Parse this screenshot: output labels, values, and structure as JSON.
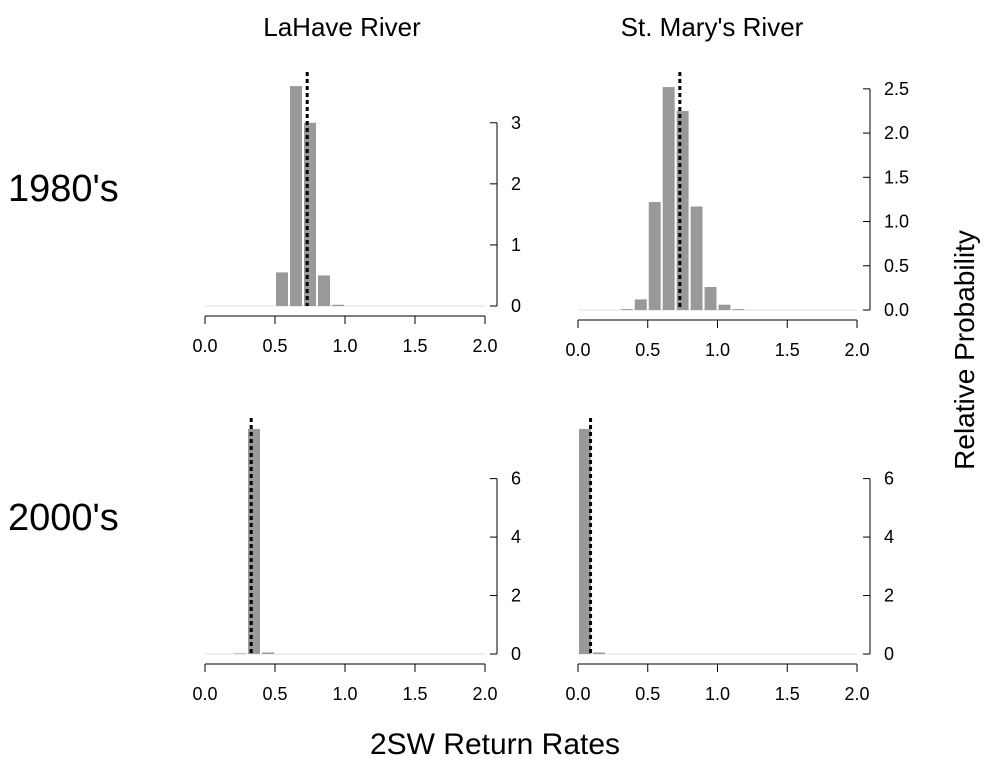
{
  "column_titles": [
    "LaHave River",
    "St. Mary's River"
  ],
  "row_titles": [
    "1980's",
    "2000's"
  ],
  "xlabel": "2SW Return Rates",
  "ylabel": "Relative Probability",
  "chart_data": [
    {
      "type": "bar",
      "title": "LaHave River",
      "row": "1980's",
      "xlim": [
        0,
        2
      ],
      "x_ticks": [
        0.0,
        0.5,
        1.0,
        1.5,
        2.0
      ],
      "x_tick_labels": [
        "0.0",
        "0.5",
        "1.0",
        "1.5",
        "2.0"
      ],
      "bin_width": 0.1,
      "bins_start": [
        0.5,
        0.6,
        0.7,
        0.8,
        0.9,
        1.0
      ],
      "values": [
        0.55,
        3.6,
        3.0,
        0.5,
        0.02,
        0.0
      ],
      "ylim": [
        0,
        3.7
      ],
      "y_ticks": [
        0,
        1,
        2,
        3
      ],
      "y_tick_labels": [
        "0",
        "1",
        "2",
        "3"
      ],
      "dotted_line_x": 0.73
    },
    {
      "type": "bar",
      "title": "St. Mary's River",
      "row": "1980's",
      "xlim": [
        0,
        2
      ],
      "x_ticks": [
        0.0,
        0.5,
        1.0,
        1.5,
        2.0
      ],
      "x_tick_labels": [
        "0.0",
        "0.5",
        "1.0",
        "1.5",
        "2.0"
      ],
      "bin_width": 0.1,
      "bins_start": [
        0.3,
        0.4,
        0.5,
        0.6,
        0.7,
        0.8,
        0.9,
        1.0,
        1.1,
        1.2
      ],
      "values": [
        0.01,
        0.12,
        1.22,
        2.52,
        2.25,
        1.17,
        0.26,
        0.06,
        0.01,
        0.0
      ],
      "ylim": [
        0,
        2.6
      ],
      "y_ticks": [
        0.0,
        0.5,
        1.0,
        1.5,
        2.0,
        2.5
      ],
      "y_tick_labels": [
        "0.0",
        "0.5",
        "1.0",
        "1.5",
        "2.0",
        "2.5"
      ],
      "dotted_line_x": 0.73
    },
    {
      "type": "bar",
      "title": "LaHave River",
      "row": "2000's",
      "xlim": [
        0,
        2
      ],
      "x_ticks": [
        0.0,
        0.5,
        1.0,
        1.5,
        2.0
      ],
      "x_tick_labels": [
        "0.0",
        "0.5",
        "1.0",
        "1.5",
        "2.0"
      ],
      "bin_width": 0.1,
      "bins_start": [
        0.2,
        0.3,
        0.4,
        0.5
      ],
      "values": [
        0.02,
        7.7,
        0.05,
        0.0
      ],
      "ylim": [
        0,
        7.8
      ],
      "y_ticks": [
        0,
        2,
        4,
        6
      ],
      "y_tick_labels": [
        "0",
        "2",
        "4",
        "6"
      ],
      "dotted_line_x": 0.33
    },
    {
      "type": "bar",
      "title": "St. Mary's River",
      "row": "2000's",
      "xlim": [
        0,
        2
      ],
      "x_ticks": [
        0.0,
        0.5,
        1.0,
        1.5,
        2.0
      ],
      "x_tick_labels": [
        "0.0",
        "0.5",
        "1.0",
        "1.5",
        "2.0"
      ],
      "bin_width": 0.1,
      "bins_start": [
        0.0,
        0.1,
        0.2
      ],
      "values": [
        7.7,
        0.05,
        0.0
      ],
      "ylim": [
        0,
        7.8
      ],
      "y_ticks": [
        0,
        2,
        4,
        6
      ],
      "y_tick_labels": [
        "0",
        "2",
        "4",
        "6"
      ],
      "dotted_line_x": 0.09
    }
  ]
}
